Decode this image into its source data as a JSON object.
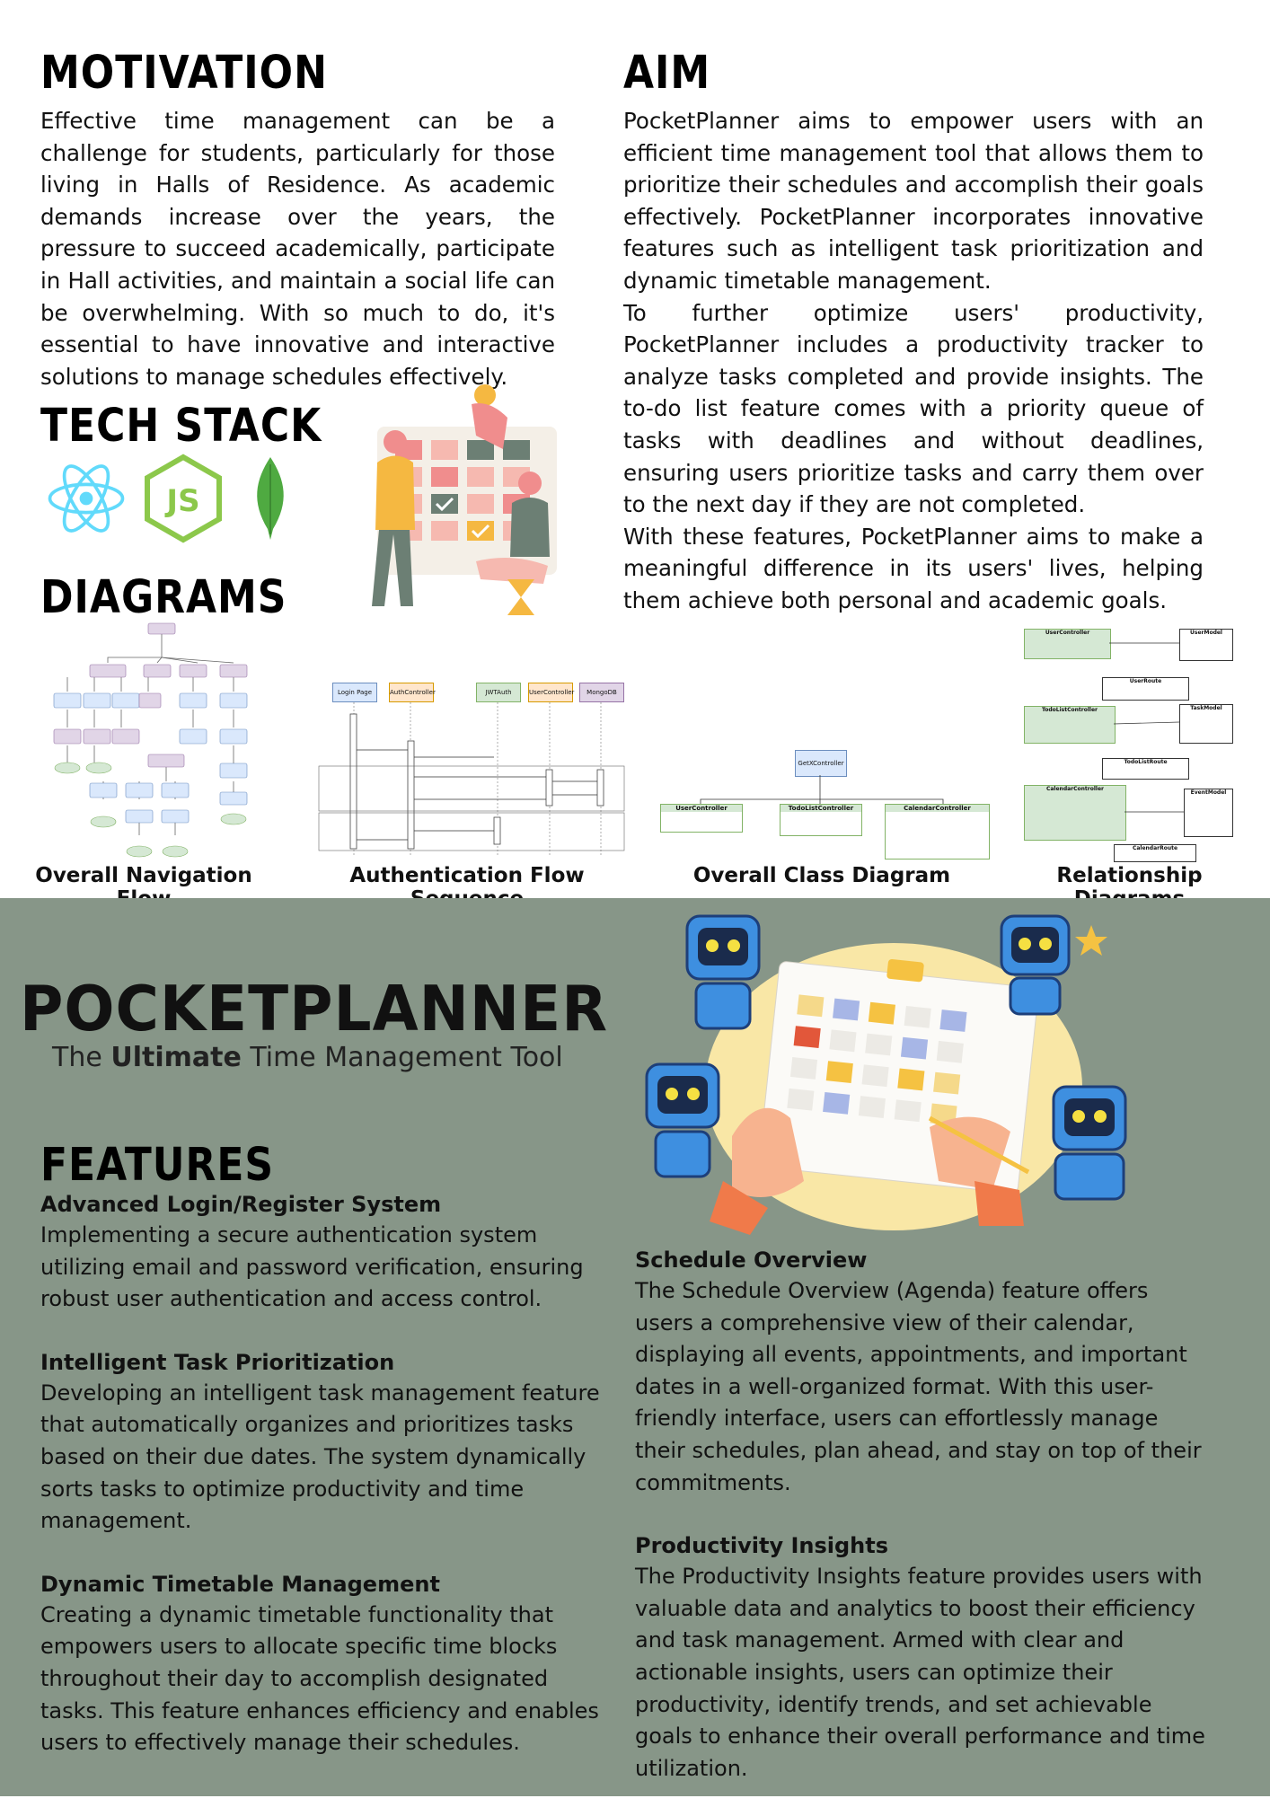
{
  "motivation": {
    "heading": "MOTIVATION",
    "text": "Effective time management can be a challenge for students, particularly for those living in Halls of Residence. As academic demands increase over the years, the pressure to succeed academically, participate in Hall activities, and maintain a social life can be overwhelming. With so much to do, it's essential to have innovative and interactive solutions to manage schedules effectively."
  },
  "aim": {
    "heading": "AIM",
    "paragraphs": [
      "PocketPlanner aims to empower users with an efficient time management tool that allows them to prioritize their schedules and accomplish their goals effectively. PocketPlanner incorporates innovative features such as intelligent task prioritization and dynamic timetable management.",
      "To further optimize users' productivity, PocketPlanner includes a productivity tracker to analyze tasks completed and provide insights. The to-do list feature comes with a priority queue of tasks with deadlines and without deadlines, ensuring users prioritize tasks and carry them over to the next day if they are not completed.",
      "With these features, PocketPlanner aims to make a meaningful difference in its users' lives, helping them achieve both personal and academic goals."
    ]
  },
  "tech_stack": {
    "heading": "TECH STACK",
    "icons": [
      "react-icon",
      "nodejs-icon",
      "mongodb-icon"
    ]
  },
  "diagrams": {
    "heading": "DIAGRAMS",
    "captions": [
      "Overall Navigation Flow",
      "Authentication Flow Sequence",
      "Overall Class Diagram",
      "Relationship Diagrams"
    ],
    "sequence_actors": [
      "Login Page",
      "AuthController",
      "JWTAuth",
      "UserController",
      "MongoDB"
    ],
    "class_root": "GetXController",
    "class_children": [
      "UserController",
      "TodoListController",
      "CalendarController"
    ],
    "relationship_boxes": [
      "UserController",
      "UserModel",
      "UserRoute",
      "TodoListController",
      "TaskModel",
      "TodoListRoute",
      "CalendarController",
      "EventModel",
      "CalendarRoute"
    ]
  },
  "brand": {
    "title": "POCKETPLANNER",
    "tagline_pre": "The ",
    "tagline_bold": "Ultimate",
    "tagline_post": " Time Management Tool"
  },
  "features": {
    "heading": "FEATURES",
    "left": [
      {
        "title": "Advanced Login/Register System",
        "body": "Implementing a secure authentication system utilizing email and password verification, ensuring robust user authentication and access control."
      },
      {
        "title": "Intelligent Task Prioritization",
        "body": "Developing an intelligent task management feature that automatically organizes and prioritizes tasks based on their due dates. The system dynamically sorts tasks to optimize productivity and time management."
      },
      {
        "title": "Dynamic Timetable Management",
        "body": "Creating a dynamic timetable functionality that empowers users to allocate specific time blocks throughout their day to accomplish designated tasks. This feature enhances efficiency and enables users to effectively manage their schedules."
      }
    ],
    "right": [
      {
        "title": "Schedule Overview",
        "body": "The Schedule Overview (Agenda) feature offers users a comprehensive view of their calendar, displaying all events, appointments, and important dates in a well-organized format. With this user-friendly interface, users can effortlessly manage their schedules, plan ahead, and stay on top of their commitments."
      },
      {
        "title": "Productivity Insights",
        "body": "The Productivity Insights feature provides users with valuable data and analytics to boost their efficiency and task management. Armed with clear and actionable insights, users can optimize their productivity, identify trends, and set achievable goals to enhance their overall performance and time utilization."
      }
    ]
  },
  "colors": {
    "green_bg": "#879688",
    "react": "#61dafb",
    "node": "#8cc84b",
    "mongo": "#4faa41"
  }
}
